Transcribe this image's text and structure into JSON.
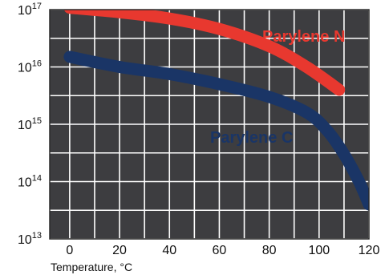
{
  "chart_data": {
    "type": "line",
    "title": "",
    "xlabel": "Temperature, °C",
    "ylabel": "",
    "x_ticks": [
      0,
      20,
      40,
      60,
      80,
      100,
      120
    ],
    "y_scale": "log",
    "y_ticks": [
      {
        "value": 10000000000000.0,
        "base": "10",
        "exp": "13"
      },
      {
        "value": 100000000000000.0,
        "base": "10",
        "exp": "14"
      },
      {
        "value": 1000000000000000.0,
        "base": "10",
        "exp": "15"
      },
      {
        "value": 1e+16,
        "base": "10",
        "exp": "16"
      },
      {
        "value": 1e+17,
        "base": "10",
        "exp": "17"
      }
    ],
    "xlim": [
      -8,
      120
    ],
    "ylim": [
      10000000000000.0,
      1e+17
    ],
    "grid": true,
    "background_color": "#3d3d40",
    "grid_color": "#ffffff",
    "series": [
      {
        "name": "Parylene N",
        "color": "#e8382f",
        "points": [
          [
            0,
            1.08e+17
          ],
          [
            20,
            9e+16
          ],
          [
            40,
            7e+16
          ],
          [
            60,
            4.6e+16
          ],
          [
            80,
            2.3e+16
          ],
          [
            95,
            1e+16
          ],
          [
            108,
            4000000000000000.0
          ]
        ]
      },
      {
        "name": "Parylene C",
        "color": "#1a3566",
        "points": [
          [
            0,
            1.5e+16
          ],
          [
            20,
            1e+16
          ],
          [
            40,
            7500000000000000.0
          ],
          [
            60,
            5000000000000000.0
          ],
          [
            80,
            3000000000000000.0
          ],
          [
            95,
            1600000000000000.0
          ],
          [
            103,
            800000000000000.0
          ],
          [
            110,
            300000000000000.0
          ],
          [
            116,
            100000000000000.0
          ],
          [
            120,
            40000000000000.0
          ]
        ]
      }
    ]
  }
}
